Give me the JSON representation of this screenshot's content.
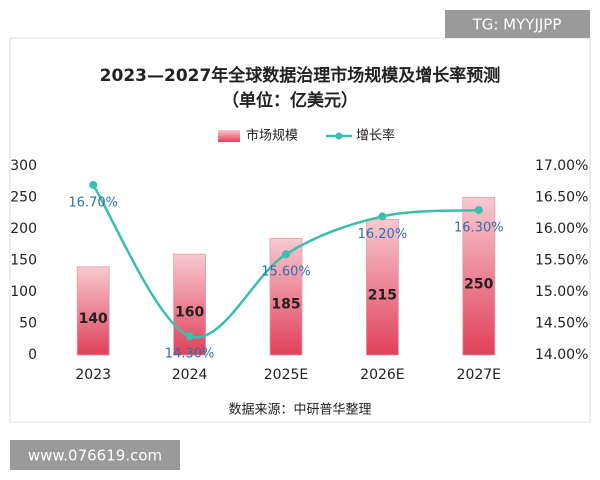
{
  "chart_data": {
    "type": "bar_line",
    "title": "2023—2027年全球数据治理市场规模及增长率预测",
    "subtitle": "（单位：亿美元）",
    "source": "数据来源：中研普华整理",
    "watermarks": [
      "TG: MYYJJPP",
      "www.076619.com"
    ],
    "categories": [
      "2023",
      "2024",
      "2025E",
      "2026E",
      "2027E"
    ],
    "series": [
      {
        "name": "市场规模",
        "type": "bar",
        "color": "#e0405a",
        "values": [
          140,
          160,
          185,
          215,
          250
        ]
      },
      {
        "name": "增长率",
        "type": "line",
        "axis": "y2",
        "color": "#3bbfad",
        "values": [
          16.7,
          14.3,
          15.6,
          16.2,
          16.3
        ],
        "value_labels": [
          "16.70%",
          "14.30%",
          "15.60%",
          "16.20%",
          "16.30%"
        ]
      }
    ],
    "ylim": [
      0,
      300
    ],
    "yticks": [
      0,
      50,
      100,
      150,
      200,
      250,
      300
    ],
    "y2lim": [
      14,
      17
    ],
    "y2ticks": [
      {
        "value": 14,
        "label": "14.00%"
      },
      {
        "value": 14.5,
        "label": "14.50%"
      },
      {
        "value": 15,
        "label": "15.00%"
      },
      {
        "value": 15.5,
        "label": "15.50%"
      },
      {
        "value": 16,
        "label": "16.00%"
      },
      {
        "value": 16.5,
        "label": "16.50%"
      },
      {
        "value": 17,
        "label": "17.00%"
      }
    ],
    "grid": false,
    "legend": "top"
  }
}
